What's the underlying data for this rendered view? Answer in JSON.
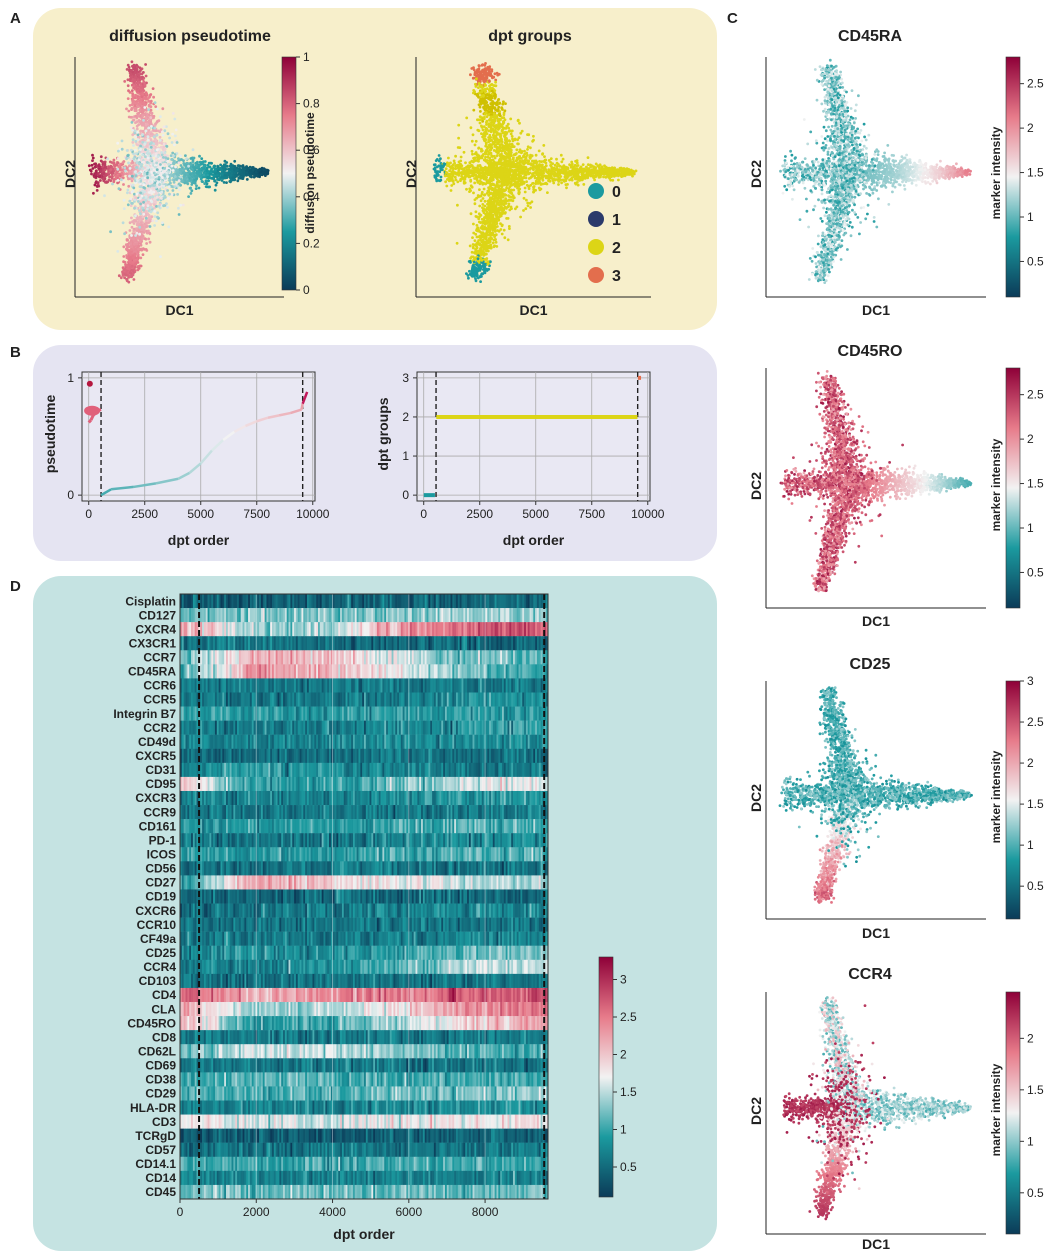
{
  "panel_letters": {
    "a": "A",
    "b": "B",
    "c": "C",
    "d": "D"
  },
  "colors": {
    "panelA_bg": "#f7efcb",
    "panelB_bg": "#e5e4f2",
    "panelD_bg": "#c5e3e2",
    "teal": "#1b9a9f",
    "navy": "#2b3a6b",
    "yellow": "#dcd516",
    "orange": "#e36e4d",
    "pink": "#e77b8a",
    "crimson": "#8e0038"
  },
  "chart_data": [
    {
      "id": "A1",
      "type": "scatter",
      "title": "diffusion pseudotime",
      "xlabel": "DC1",
      "ylabel": "DC2",
      "colorbar": {
        "label": "diffusion pseudotime",
        "range": [
          0,
          1
        ],
        "ticks": [
          "0",
          "0.2",
          "0.4",
          "0.6",
          "0.8",
          "1"
        ]
      },
      "description_data": {
        "branches": [
          "left",
          "upper",
          "lower",
          "right"
        ],
        "pseudotime_by_branch": {
          "right": 0.05,
          "center": 0.45,
          "upper": 0.8,
          "lower": 0.75,
          "left": 0.95
        }
      }
    },
    {
      "id": "A2",
      "type": "scatter",
      "title": "dpt groups",
      "xlabel": "DC1",
      "ylabel": "DC2",
      "legend": [
        {
          "label": "0",
          "color": "#1b9a9f"
        },
        {
          "label": "1",
          "color": "#2b3a6b"
        },
        {
          "label": "2",
          "color": "#dcd516"
        },
        {
          "label": "3",
          "color": "#e36e4d"
        }
      ]
    },
    {
      "id": "B1",
      "type": "line",
      "xlabel": "dpt order",
      "ylabel": "pseudotime",
      "xticks": [
        "0",
        "2500",
        "5000",
        "7500",
        "10000"
      ],
      "yticks": [
        "0",
        "1"
      ],
      "xlim": [
        -300,
        10100
      ],
      "ylim": [
        -0.05,
        1.05
      ],
      "vlines": [
        550,
        9550
      ],
      "x": [
        550,
        1000,
        2000,
        3000,
        4000,
        4500,
        5000,
        5500,
        6000,
        6500,
        7000,
        7500,
        8000,
        8500,
        9000,
        9500,
        9550
      ],
      "y": [
        0.0,
        0.05,
        0.07,
        0.1,
        0.14,
        0.19,
        0.27,
        0.38,
        0.47,
        0.54,
        0.59,
        0.63,
        0.66,
        0.68,
        0.7,
        0.73,
        0.78
      ],
      "early_x": [
        0,
        100,
        200,
        300,
        400,
        550
      ],
      "early_y": [
        0.62,
        0.64,
        0.68,
        0.7,
        0.72,
        0.73
      ],
      "end_x": [
        9550,
        9650,
        9750
      ],
      "end_y": [
        0.78,
        0.83,
        0.88
      ]
    },
    {
      "id": "B2",
      "type": "line",
      "xlabel": "dpt order",
      "ylabel": "dpt groups",
      "xticks": [
        "0",
        "2500",
        "5000",
        "7500",
        "10000"
      ],
      "yticks": [
        "0",
        "1",
        "2",
        "3"
      ],
      "xlim": [
        -300,
        10100
      ],
      "ylim": [
        -0.15,
        3.15
      ],
      "vlines": [
        550,
        9550
      ],
      "segments": [
        {
          "group": 0,
          "x0": 0,
          "x1": 500,
          "color": "#1b9a9f"
        },
        {
          "group": 2,
          "x0": 560,
          "x1": 9540,
          "color": "#dcd516"
        },
        {
          "group": 3,
          "x0": 9560,
          "x1": 9700,
          "color": "#e36e4d"
        }
      ]
    },
    {
      "id": "C1",
      "type": "scatter",
      "title": "CD45RA",
      "xlabel": "DC1",
      "ylabel": "DC2",
      "colorbar": {
        "label": "marker intensity",
        "ticks": [
          "0.5",
          "1",
          "1.5",
          "2",
          "2.5"
        ],
        "range": [
          0.1,
          2.8
        ]
      }
    },
    {
      "id": "C2",
      "type": "scatter",
      "title": "CD45RO",
      "xlabel": "DC1",
      "ylabel": "DC2",
      "colorbar": {
        "label": "marker intensity",
        "ticks": [
          "0.5",
          "1",
          "1.5",
          "2",
          "2.5"
        ],
        "range": [
          0.1,
          2.8
        ]
      }
    },
    {
      "id": "C3",
      "type": "scatter",
      "title": "CD25",
      "xlabel": "DC1",
      "ylabel": "DC2",
      "colorbar": {
        "label": "marker intensity",
        "ticks": [
          "0.5",
          "1",
          "1.5",
          "2",
          "2.5",
          "3"
        ],
        "range": [
          0.1,
          3.0
        ]
      }
    },
    {
      "id": "C4",
      "type": "scatter",
      "title": "CCR4",
      "xlabel": "DC1",
      "ylabel": "DC2",
      "colorbar": {
        "label": "marker intensity",
        "ticks": [
          "0.5",
          "1",
          "1.5",
          "2"
        ],
        "range": [
          0.1,
          2.45
        ]
      }
    },
    {
      "id": "D",
      "type": "heatmap",
      "xlabel": "dpt order",
      "xticks": [
        "0",
        "2000",
        "4000",
        "6000",
        "8000"
      ],
      "xlim": [
        0,
        9650
      ],
      "vlines": [
        500,
        9550
      ],
      "colorbar": {
        "ticks": [
          "0.5",
          "1",
          "1.5",
          "2",
          "2.5",
          "3"
        ],
        "range": [
          0.1,
          3.3
        ]
      },
      "rows": [
        "Cisplatin",
        "CD127",
        "CXCR4",
        "CX3CR1",
        "CCR7",
        "CD45RA",
        "CCR6",
        "CCR5",
        "Integrin B7",
        "CCR2",
        "CD49d",
        "CXCR5",
        "CD31",
        "CD95",
        "CXCR3",
        "CCR9",
        "CD161",
        "PD-1",
        "ICOS",
        "CD56",
        "CD27",
        "CD19",
        "CXCR6",
        "CCR10",
        "CF49a",
        "CD25",
        "CCR4",
        "CD103",
        "CD4",
        "CLA",
        "CD45RO",
        "CD8",
        "CD62L",
        "CD69",
        "CD38",
        "CD29",
        "HLA-DR",
        "CD3",
        "TCRgD",
        "CD57",
        "CD14.1",
        "CD14",
        "CD45"
      ],
      "row_profiles": [
        [
          0.35,
          0.4,
          0.4,
          0.45,
          0.45,
          0.45
        ],
        [
          1.2,
          1.3,
          1.2,
          1.3,
          1.4,
          1.3
        ],
        [
          2.3,
          1.3,
          1.4,
          2.3,
          2.7,
          2.7
        ],
        [
          0.6,
          0.6,
          0.5,
          0.5,
          0.5,
          0.5
        ],
        [
          1.1,
          2.2,
          2.0,
          1.6,
          1.2,
          1.1
        ],
        [
          1.0,
          2.3,
          2.1,
          1.7,
          1.2,
          1.0
        ],
        [
          0.6,
          0.6,
          0.6,
          0.6,
          0.6,
          0.6
        ],
        [
          0.6,
          0.6,
          0.6,
          0.7,
          0.8,
          0.8
        ],
        [
          0.9,
          0.9,
          0.9,
          0.9,
          0.9,
          0.9
        ],
        [
          0.6,
          0.6,
          0.6,
          0.7,
          0.9,
          1.0
        ],
        [
          0.7,
          0.7,
          0.7,
          0.8,
          0.8,
          0.8
        ],
        [
          0.5,
          0.5,
          0.5,
          0.6,
          0.5,
          0.5
        ],
        [
          0.7,
          0.9,
          0.8,
          0.7,
          0.6,
          0.6
        ],
        [
          2.0,
          0.9,
          0.9,
          1.2,
          1.6,
          1.7
        ],
        [
          0.7,
          0.7,
          0.7,
          0.8,
          0.9,
          0.9
        ],
        [
          0.6,
          0.6,
          0.6,
          0.6,
          0.6,
          0.6
        ],
        [
          0.9,
          0.9,
          0.9,
          1.0,
          1.1,
          1.1
        ],
        [
          0.6,
          0.6,
          0.6,
          0.7,
          0.8,
          0.8
        ],
        [
          0.9,
          0.9,
          0.9,
          1.0,
          1.1,
          1.1
        ],
        [
          0.6,
          0.6,
          0.6,
          0.6,
          0.6,
          0.6
        ],
        [
          0.9,
          2.2,
          2.0,
          1.7,
          1.5,
          1.3
        ],
        [
          0.5,
          0.5,
          0.5,
          0.5,
          0.5,
          0.5
        ],
        [
          0.6,
          0.6,
          0.6,
          0.7,
          0.8,
          0.8
        ],
        [
          0.6,
          0.6,
          0.6,
          0.6,
          0.6,
          0.6
        ],
        [
          0.6,
          0.6,
          0.6,
          0.6,
          0.7,
          0.7
        ],
        [
          0.7,
          0.8,
          0.8,
          1.0,
          1.2,
          1.2
        ],
        [
          0.7,
          0.7,
          0.8,
          1.1,
          1.5,
          1.5
        ],
        [
          0.6,
          0.6,
          0.6,
          0.6,
          0.6,
          0.6
        ],
        [
          2.6,
          2.2,
          2.3,
          2.5,
          2.7,
          2.8
        ],
        [
          2.3,
          1.3,
          1.4,
          1.8,
          2.4,
          2.6
        ],
        [
          2.2,
          0.9,
          1.0,
          1.4,
          2.0,
          2.2
        ],
        [
          0.6,
          0.6,
          0.6,
          0.6,
          0.6,
          0.6
        ],
        [
          1.2,
          1.6,
          1.5,
          1.3,
          1.1,
          1.0
        ],
        [
          0.6,
          0.6,
          0.6,
          0.6,
          0.6,
          0.6
        ],
        [
          1.0,
          1.1,
          1.1,
          1.0,
          1.0,
          1.0
        ],
        [
          1.1,
          1.0,
          1.1,
          1.2,
          1.3,
          1.3
        ],
        [
          0.7,
          0.7,
          0.7,
          0.7,
          0.8,
          0.8
        ],
        [
          1.8,
          1.6,
          1.6,
          1.7,
          1.8,
          1.8
        ],
        [
          0.4,
          0.4,
          0.4,
          0.4,
          0.4,
          0.4
        ],
        [
          0.6,
          0.6,
          0.6,
          0.6,
          0.6,
          0.7
        ],
        [
          1.0,
          1.0,
          1.0,
          1.0,
          1.0,
          1.0
        ],
        [
          0.7,
          0.7,
          0.7,
          0.7,
          0.7,
          0.7
        ],
        [
          1.2,
          1.2,
          1.2,
          1.2,
          1.2,
          1.2
        ]
      ]
    }
  ]
}
